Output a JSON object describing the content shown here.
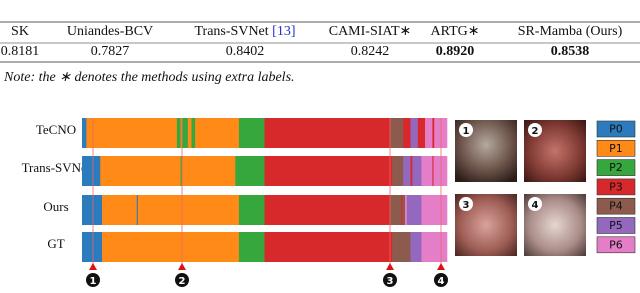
{
  "table": {
    "header": [
      "SK",
      "Uniandes-BCV",
      {
        "text": "Trans-SVNet",
        "ref": "[13]"
      },
      "CAMI-SIAT∗",
      "ARTG∗",
      "SR-Mamba (Ours)"
    ],
    "rows": [
      [
        "0.8181",
        "0.7827",
        "0.8402",
        "0.8242",
        "0.8920",
        "0.8538"
      ]
    ],
    "bold": [
      4,
      5
    ]
  },
  "note": "Note: the ∗ denotes the methods using extra labels.",
  "figure": {
    "rows": [
      "TeCNO",
      "Trans-SVNet",
      "Ours",
      "GT"
    ],
    "phases": [
      {
        "name": "P0",
        "color": "#2b7bbd"
      },
      {
        "name": "P1",
        "color": "#ff8a17"
      },
      {
        "name": "P2",
        "color": "#35a73c"
      },
      {
        "name": "P3",
        "color": "#d7282c"
      },
      {
        "name": "P4",
        "color": "#8d5a4e"
      },
      {
        "name": "P5",
        "color": "#9468be"
      },
      {
        "name": "P6",
        "color": "#e57ec9"
      }
    ],
    "markers": [
      "1",
      "2",
      "3",
      "4"
    ]
  }
}
